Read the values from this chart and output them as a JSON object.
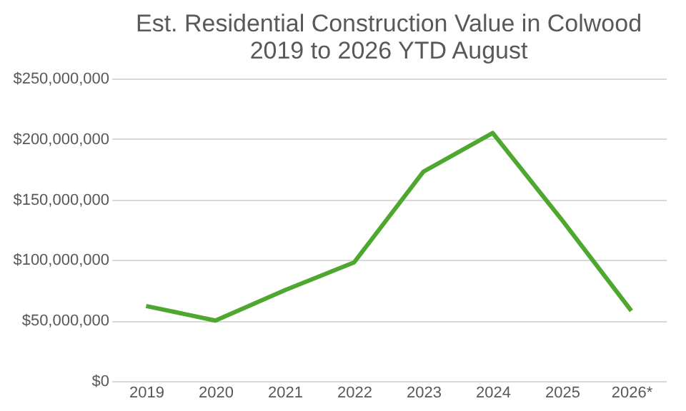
{
  "chart_data": {
    "type": "line",
    "title": [
      "Est. Residential Construction Value in Colwood",
      "2019 to 2026 YTD August"
    ],
    "categories": [
      "2019",
      "2020",
      "2021",
      "2022",
      "2023",
      "2024",
      "2025",
      "2026*"
    ],
    "series": [
      {
        "color": "#4ea72e",
        "values": [
          62000000,
          50000000,
          75000000,
          98000000,
          173000000,
          205000000,
          133000000,
          58000000
        ]
      }
    ],
    "ylim": [
      0,
      250000000
    ],
    "yticks": [
      {
        "value": 0,
        "label": "$0"
      },
      {
        "value": 50000000,
        "label": "$50,000,000"
      },
      {
        "value": 100000000,
        "label": "$100,000,000"
      },
      {
        "value": 150000000,
        "label": "$150,000,000"
      },
      {
        "value": 200000000,
        "label": "$200,000,000"
      },
      {
        "value": 250000000,
        "label": "$250,000,000"
      }
    ],
    "grid": "y",
    "marker": "none",
    "line_style": "solid"
  }
}
